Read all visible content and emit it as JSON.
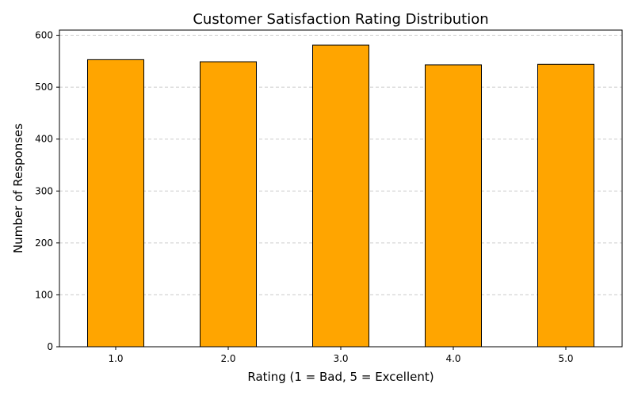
{
  "chart_data": {
    "type": "bar",
    "title": "Customer Satisfaction Rating Distribution",
    "xlabel": "Rating (1 = Bad, 5 = Excellent)",
    "ylabel": "Number of Responses",
    "categories": [
      "1.0",
      "2.0",
      "3.0",
      "4.0",
      "5.0"
    ],
    "values": [
      553,
      549,
      581,
      543,
      544
    ],
    "ylim": [
      0,
      610
    ],
    "yticks": [
      0,
      100,
      200,
      300,
      400,
      500,
      600
    ],
    "grid": {
      "y": true,
      "style": "dashed"
    },
    "bar_color": "#ffa500",
    "bar_edge_color": "#000000"
  }
}
